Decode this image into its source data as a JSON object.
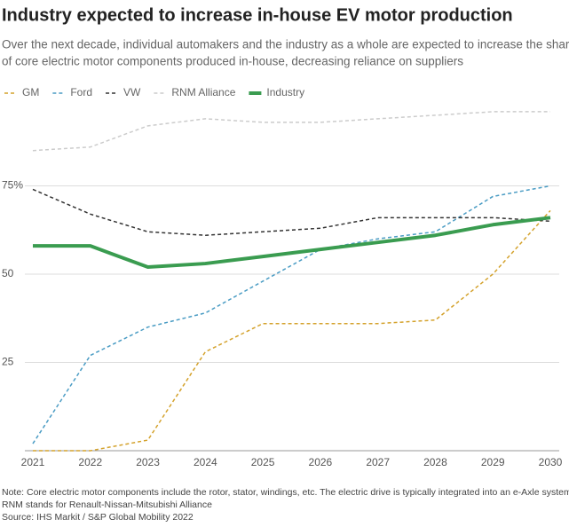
{
  "chart_data": {
    "type": "line",
    "title": "Industry expected to increase in-house EV motor production",
    "subtitle": [
      "Over the next decade, individual automakers and the industry as a whole are expected to increase the share",
      "of core electric motor components produced in-house, decreasing reliance on suppliers"
    ],
    "categories": [
      "2021",
      "2022",
      "2023",
      "2024",
      "2025",
      "2026",
      "2027",
      "2028",
      "2029",
      "2030"
    ],
    "series": [
      {
        "name": "GM",
        "color": "#d4a22c",
        "dashed": true,
        "values": [
          0,
          0,
          3,
          28,
          36,
          36,
          36,
          37,
          50,
          68
        ]
      },
      {
        "name": "Ford",
        "color": "#4a9cc4",
        "dashed": true,
        "values": [
          2,
          27,
          35,
          39,
          48,
          57,
          60,
          62,
          72,
          75
        ]
      },
      {
        "name": "VW",
        "color": "#333333",
        "dashed": true,
        "values": [
          74,
          67,
          62,
          61,
          62,
          63,
          66,
          66,
          66,
          65
        ]
      },
      {
        "name": "RNM Alliance",
        "color": "#cccccc",
        "dashed": true,
        "values": [
          85,
          86,
          92,
          94,
          93,
          93,
          94,
          95,
          96,
          96
        ]
      },
      {
        "name": "Industry",
        "color": "#3a9c50",
        "dashed": false,
        "values": [
          58,
          58,
          52,
          53,
          55,
          57,
          59,
          61,
          64,
          66
        ]
      }
    ],
    "ylim": [
      0,
      100
    ],
    "yticks": [
      25,
      50,
      {
        "value": 75,
        "label": "75%"
      }
    ],
    "grid": true,
    "legend": "top",
    "notes": [
      "Note: Core electric motor components include the rotor, stator, windings, etc. The electric drive is typically integrated into an e-Axle system.",
      "RNM stands for Renault-Nissan-Mitsubishi Alliance",
      "Source: IHS Markit / S&P Global Mobility 2022"
    ]
  }
}
